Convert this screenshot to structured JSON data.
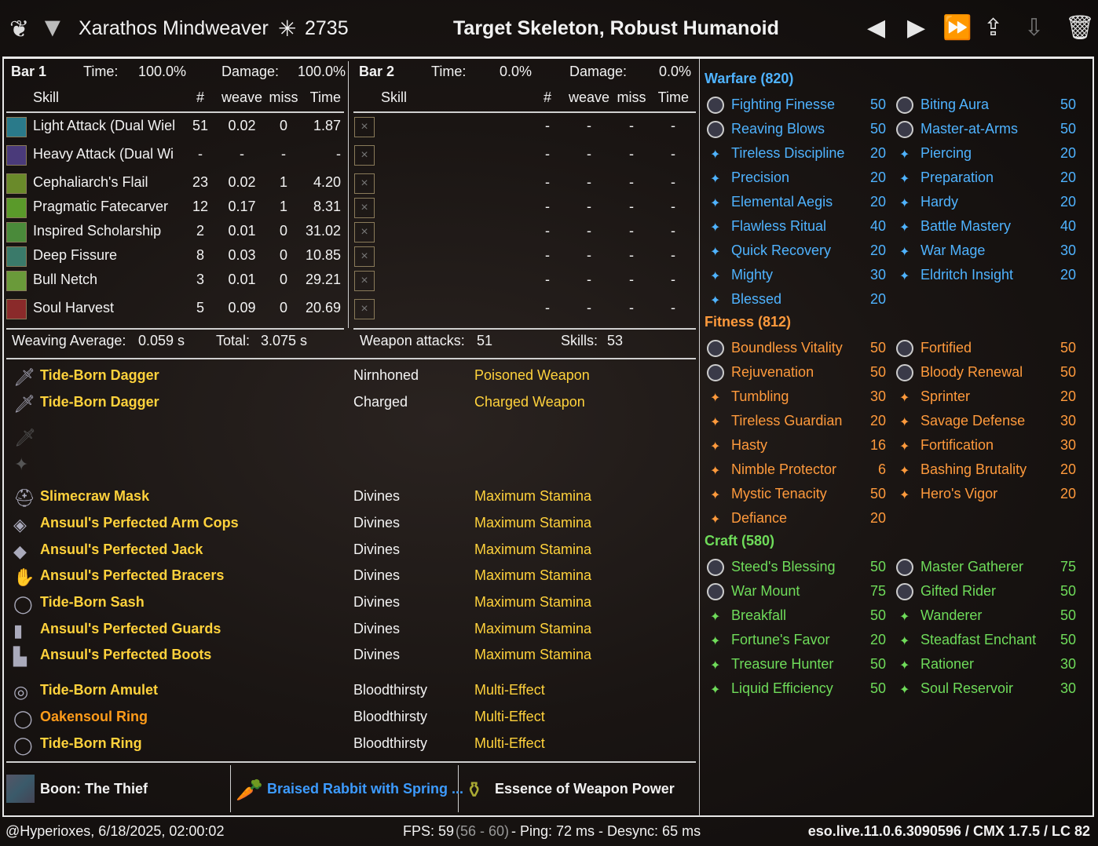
{
  "header": {
    "character_name": "Xarathos Mindweaver",
    "champion_points": "2735",
    "target": "Target Skeleton, Robust Humanoid",
    "icons": [
      "prev-icon",
      "next-icon",
      "fast-forward-icon",
      "upload-icon",
      "download-icon",
      "trash-icon"
    ]
  },
  "bar1": {
    "title": "Bar 1",
    "time_label": "Time:",
    "time": "100.0%",
    "damage_label": "Damage:",
    "damage": "100.0%",
    "cols": [
      "Skill",
      "#",
      "weave",
      "miss",
      "Time"
    ],
    "rows": [
      {
        "skill": "Light Attack (Dual Wiel",
        "count": "51",
        "weave": "0.02",
        "miss": "0",
        "time": "1.87",
        "color": "#2a7a8a"
      },
      {
        "skill": "Heavy Attack (Dual Wi",
        "count": "-",
        "weave": "-",
        "miss": "-",
        "time": "-",
        "color": "#4a3a7a"
      },
      {
        "skill": "Cephaliarch's Flail",
        "count": "23",
        "weave": "0.02",
        "miss": "1",
        "time": "4.20",
        "color": "#6a8a2a"
      },
      {
        "skill": "Pragmatic Fatecarver",
        "count": "12",
        "weave": "0.17",
        "miss": "1",
        "time": "8.31",
        "color": "#5a9a2a"
      },
      {
        "skill": "Inspired Scholarship",
        "count": "2",
        "weave": "0.01",
        "miss": "0",
        "time": "31.02",
        "color": "#4a8a3a"
      },
      {
        "skill": "Deep Fissure",
        "count": "8",
        "weave": "0.03",
        "miss": "0",
        "time": "10.85",
        "color": "#3a7a6a"
      },
      {
        "skill": "Bull Netch",
        "count": "3",
        "weave": "0.01",
        "miss": "0",
        "time": "29.21",
        "color": "#6a9a3a"
      },
      {
        "skill": "Soul Harvest",
        "count": "5",
        "weave": "0.09",
        "miss": "0",
        "time": "20.69",
        "color": "#8a2a2a"
      }
    ]
  },
  "bar2": {
    "title": "Bar 2",
    "time_label": "Time:",
    "time": "0.0%",
    "damage_label": "Damage:",
    "damage": "0.0%",
    "cols": [
      "Skill",
      "#",
      "weave",
      "miss",
      "Time"
    ],
    "empty": "-"
  },
  "summary": {
    "weaving_label": "Weaving Average:",
    "weaving": "0.059 s",
    "total_label": "Total:",
    "total": "3.075 s",
    "weapon_label": "Weapon attacks:",
    "weapon": "51",
    "skills_label": "Skills:",
    "skills": "53"
  },
  "gear": [
    {
      "name": "Tide-Born Dagger",
      "trait": "Nirnhoned",
      "enchant": "Poisoned Weapon",
      "color": "#ffd23c",
      "icon": "dagger-icon"
    },
    {
      "name": "Tide-Born Dagger",
      "trait": "Charged",
      "enchant": "Charged Weapon",
      "color": "#ffd23c",
      "icon": "dagger-icon"
    },
    {
      "name": "Slimecraw Mask",
      "trait": "Divines",
      "enchant": "Maximum Stamina",
      "color": "#ffd23c",
      "icon": "helmet-icon"
    },
    {
      "name": "Ansuul's Perfected Arm Cops",
      "trait": "Divines",
      "enchant": "Maximum Stamina",
      "color": "#ffd23c",
      "icon": "shoulder-icon"
    },
    {
      "name": "Ansuul's Perfected Jack",
      "trait": "Divines",
      "enchant": "Maximum Stamina",
      "color": "#ffd23c",
      "icon": "chest-icon"
    },
    {
      "name": "Ansuul's Perfected Bracers",
      "trait": "Divines",
      "enchant": "Maximum Stamina",
      "color": "#ffd23c",
      "icon": "gloves-icon"
    },
    {
      "name": "Tide-Born Sash",
      "trait": "Divines",
      "enchant": "Maximum Stamina",
      "color": "#ffd23c",
      "icon": "belt-icon"
    },
    {
      "name": "Ansuul's Perfected Guards",
      "trait": "Divines",
      "enchant": "Maximum Stamina",
      "color": "#ffd23c",
      "icon": "legs-icon"
    },
    {
      "name": "Ansuul's Perfected Boots",
      "trait": "Divines",
      "enchant": "Maximum Stamina",
      "color": "#ffd23c",
      "icon": "boots-icon"
    },
    {
      "name": "Tide-Born Amulet",
      "trait": "Bloodthirsty",
      "enchant": "Multi-Effect",
      "color": "#ffd23c",
      "icon": "amulet-icon"
    },
    {
      "name": "Oakensoul Ring",
      "trait": "Bloodthirsty",
      "enchant": "Multi-Effect",
      "color": "#ff9c1a",
      "icon": "ring-icon"
    },
    {
      "name": "Tide-Born Ring",
      "trait": "Bloodthirsty",
      "enchant": "Multi-Effect",
      "color": "#ffd23c",
      "icon": "ring-icon"
    }
  ],
  "buffs": {
    "mundus": "Boon: The Thief",
    "food": "Braised Rabbit with Spring ...",
    "potion": "Essence of Weapon Power",
    "food_color": "#3d9bff"
  },
  "champion": [
    {
      "title": "Warfare (820)",
      "color": "#4fb3ff",
      "items": [
        [
          "Fighting Finesse",
          "50",
          "Biting Aura",
          "50"
        ],
        [
          "Reaving Blows",
          "50",
          "Master-at-Arms",
          "50"
        ],
        [
          "Tireless Discipline",
          "20",
          "Piercing",
          "20"
        ],
        [
          "Precision",
          "20",
          "Preparation",
          "20"
        ],
        [
          "Elemental Aegis",
          "20",
          "Hardy",
          "20"
        ],
        [
          "Flawless Ritual",
          "40",
          "Battle Mastery",
          "40"
        ],
        [
          "Quick Recovery",
          "20",
          "War Mage",
          "30"
        ],
        [
          "Mighty",
          "30",
          "Eldritch Insight",
          "20"
        ],
        [
          "Blessed",
          "20",
          "",
          ""
        ]
      ]
    },
    {
      "title": "Fitness (812)",
      "color": "#ff9a3c",
      "items": [
        [
          "Boundless Vitality",
          "50",
          "Fortified",
          "50"
        ],
        [
          "Rejuvenation",
          "50",
          "Bloody Renewal",
          "50"
        ],
        [
          "Tumbling",
          "30",
          "Sprinter",
          "20"
        ],
        [
          "Tireless Guardian",
          "20",
          "Savage Defense",
          "30"
        ],
        [
          "Hasty",
          "16",
          "Fortification",
          "30"
        ],
        [
          "Nimble Protector",
          "6",
          "Bashing Brutality",
          "20"
        ],
        [
          "Mystic Tenacity",
          "50",
          "Hero's Vigor",
          "20"
        ],
        [
          "Defiance",
          "20",
          "",
          ""
        ]
      ]
    },
    {
      "title": "Craft (580)",
      "color": "#6fdc5a",
      "items": [
        [
          "Steed's Blessing",
          "50",
          "Master Gatherer",
          "75"
        ],
        [
          "War Mount",
          "75",
          "Gifted Rider",
          "50"
        ],
        [
          "Breakfall",
          "50",
          "Wanderer",
          "50"
        ],
        [
          "Fortune's Favor",
          "20",
          "Steadfast Enchant",
          "50"
        ],
        [
          "Treasure Hunter",
          "50",
          "Rationer",
          "30"
        ],
        [
          "Liquid Efficiency",
          "50",
          "Soul Reservoir",
          "30"
        ]
      ]
    }
  ],
  "footer": {
    "user": "@Hyperioxes, 6/18/2025, 02:00:02",
    "fps": "FPS: 59",
    "fps_range": "(56 - 60)",
    "ping": "- Ping: 72 ms - Desync: 65 ms",
    "version": "eso.live.11.0.6.3090596 / CMX 1.7.5 / LC 82"
  }
}
